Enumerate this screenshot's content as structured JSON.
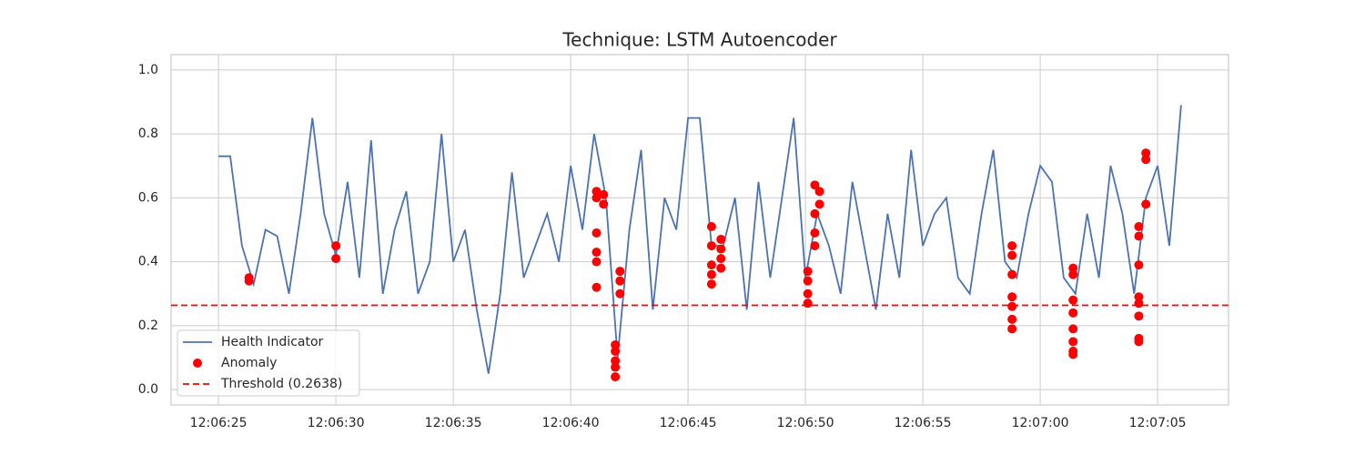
{
  "chart_data": {
    "type": "line",
    "title": "Technique: LSTM Autoencoder",
    "xlim": [
      "12:06:22.98",
      "12:07:08.02"
    ],
    "xticks": [
      "12:06:25",
      "12:06:30",
      "12:06:35",
      "12:06:40",
      "12:06:45",
      "12:06:50",
      "12:06:55",
      "12:07:00",
      "12:07:05"
    ],
    "ylim": [
      -0.048,
      1.048
    ],
    "yticks": [
      {
        "value": 0,
        "label": "0.0"
      },
      0.2,
      0.4,
      0.6,
      0.8,
      {
        "value": 1,
        "label": "1.0"
      }
    ],
    "grid": true,
    "legend": "lower left",
    "series": [
      {
        "name": "Health Indicator",
        "color": "#4c72b0",
        "kind": "line",
        "x": [
          "12:06:25.0",
          "12:06:25.5",
          "12:06:26.0",
          "12:06:26.5",
          "12:06:27.0",
          "12:06:27.5",
          "12:06:28.0",
          "12:06:28.5",
          "12:06:29.0",
          "12:06:29.5",
          "12:06:30.0",
          "12:06:30.5",
          "12:06:31.0",
          "12:06:31.5",
          "12:06:32.0",
          "12:06:32.5",
          "12:06:33.0",
          "12:06:33.5",
          "12:06:34.0",
          "12:06:34.5",
          "12:06:35.0",
          "12:06:35.5",
          "12:06:36.0",
          "12:06:36.5",
          "12:06:37.0",
          "12:06:37.5",
          "12:06:38.0",
          "12:06:38.5",
          "12:06:39.0",
          "12:06:39.5",
          "12:06:40.0",
          "12:06:40.5",
          "12:06:41.0",
          "12:06:41.5",
          "12:06:42.0",
          "12:06:42.5",
          "12:06:43.0",
          "12:06:43.5",
          "12:06:44.0",
          "12:06:44.5",
          "12:06:45.0",
          "12:06:45.5",
          "12:06:46.0",
          "12:06:46.5",
          "12:06:47.0",
          "12:06:47.5",
          "12:06:48.0",
          "12:06:48.5",
          "12:06:49.0",
          "12:06:49.5",
          "12:06:50.0",
          "12:06:50.5",
          "12:06:51.0",
          "12:06:51.5",
          "12:06:52.0",
          "12:06:52.5",
          "12:06:53.0",
          "12:06:53.5",
          "12:06:54.0",
          "12:06:54.5",
          "12:06:55.0",
          "12:06:55.5",
          "12:06:56.0",
          "12:06:56.5",
          "12:06:57.0",
          "12:06:57.5",
          "12:06:58.0",
          "12:06:58.5",
          "12:06:59.0",
          "12:06:59.5",
          "12:07:00.0",
          "12:07:00.5",
          "12:07:01.0",
          "12:07:01.5",
          "12:07:02.0",
          "12:07:02.5",
          "12:07:03.0",
          "12:07:03.5",
          "12:07:04.0",
          "12:07:04.5",
          "12:07:05.0",
          "12:07:05.5",
          "12:07:06.0"
        ],
        "values": [
          0.73,
          0.73,
          0.45,
          0.33,
          0.5,
          0.48,
          0.3,
          0.55,
          0.85,
          0.55,
          0.42,
          0.65,
          0.35,
          0.78,
          0.3,
          0.5,
          0.62,
          0.3,
          0.4,
          0.8,
          0.4,
          0.5,
          0.25,
          0.05,
          0.3,
          0.68,
          0.35,
          0.45,
          0.55,
          0.4,
          0.7,
          0.5,
          0.8,
          0.6,
          0.1,
          0.5,
          0.75,
          0.25,
          0.6,
          0.5,
          0.85,
          0.85,
          0.45,
          0.45,
          0.6,
          0.25,
          0.65,
          0.35,
          0.6,
          0.85,
          0.35,
          0.55,
          0.45,
          0.3,
          0.65,
          0.45,
          0.25,
          0.55,
          0.35,
          0.75,
          0.45,
          0.55,
          0.6,
          0.35,
          0.3,
          0.55,
          0.75,
          0.4,
          0.35,
          0.55,
          0.7,
          0.65,
          0.35,
          0.3,
          0.55,
          0.35,
          0.7,
          0.55,
          0.3,
          0.6,
          0.7,
          0.45,
          0.89
        ]
      },
      {
        "name": "Anomaly",
        "color": "#ff0000",
        "kind": "scatter",
        "x": [
          "12:06:26.3",
          "12:06:26.3",
          "12:06:30.0",
          "12:06:30.0",
          "12:06:41.1",
          "12:06:41.1",
          "12:06:41.1",
          "12:06:41.1",
          "12:06:41.1",
          "12:06:41.1",
          "12:06:41.4",
          "12:06:41.4",
          "12:06:41.9",
          "12:06:41.9",
          "12:06:41.9",
          "12:06:41.9",
          "12:06:41.9",
          "12:06:42.1",
          "12:06:42.1",
          "12:06:42.1",
          "12:06:46.0",
          "12:06:46.0",
          "12:06:46.0",
          "12:06:46.0",
          "12:06:46.0",
          "12:06:46.4",
          "12:06:46.4",
          "12:06:46.4",
          "12:06:46.4",
          "12:06:50.1",
          "12:06:50.1",
          "12:06:50.1",
          "12:06:50.1",
          "12:06:50.4",
          "12:06:50.4",
          "12:06:50.4",
          "12:06:50.4",
          "12:06:50.6",
          "12:06:50.6",
          "12:06:58.8",
          "12:06:58.8",
          "12:06:58.8",
          "12:06:58.8",
          "12:06:58.8",
          "12:06:58.8",
          "12:06:58.8",
          "12:07:01.4",
          "12:07:01.4",
          "12:07:01.4",
          "12:07:01.4",
          "12:07:01.4",
          "12:07:01.4",
          "12:07:01.4",
          "12:07:01.4",
          "12:07:04.2",
          "12:07:04.2",
          "12:07:04.2",
          "12:07:04.2",
          "12:07:04.2",
          "12:07:04.2",
          "12:07:04.2",
          "12:07:04.2",
          "12:07:04.5",
          "12:07:04.5",
          "12:07:04.5"
        ],
        "values": [
          0.35,
          0.34,
          0.45,
          0.41,
          0.62,
          0.6,
          0.49,
          0.43,
          0.4,
          0.32,
          0.61,
          0.58,
          0.14,
          0.12,
          0.09,
          0.07,
          0.04,
          0.37,
          0.34,
          0.3,
          0.51,
          0.45,
          0.39,
          0.36,
          0.33,
          0.47,
          0.44,
          0.41,
          0.38,
          0.37,
          0.34,
          0.3,
          0.27,
          0.45,
          0.49,
          0.55,
          0.64,
          0.62,
          0.58,
          0.45,
          0.42,
          0.36,
          0.29,
          0.26,
          0.22,
          0.19,
          0.38,
          0.36,
          0.28,
          0.24,
          0.19,
          0.15,
          0.12,
          0.11,
          0.51,
          0.48,
          0.39,
          0.29,
          0.27,
          0.23,
          0.16,
          0.15,
          0.74,
          0.72,
          0.58
        ]
      }
    ],
    "threshold": {
      "value": 0.2638,
      "label": "Threshold (0.2638)",
      "color": "#ff0000"
    }
  }
}
